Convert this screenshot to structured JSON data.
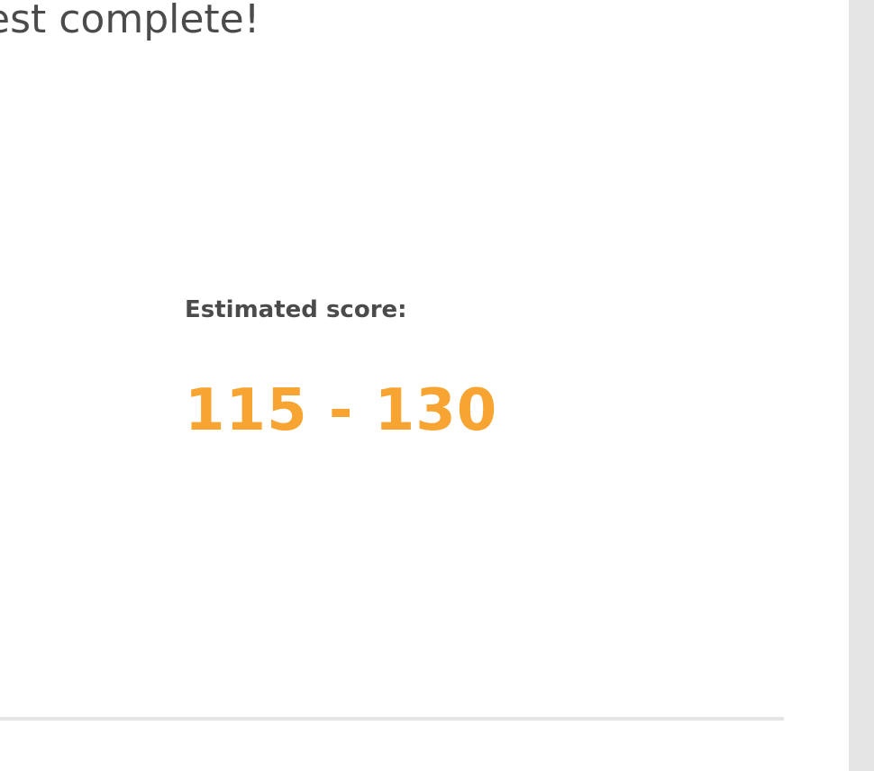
{
  "heading": "est complete!",
  "result": {
    "label": "Estimated score:",
    "value": "115 - 130"
  },
  "colors": {
    "text": "#4b4b4b",
    "accent": "#f8a432",
    "divider": "#e5e5e5",
    "rail": "#e5e5e5"
  }
}
